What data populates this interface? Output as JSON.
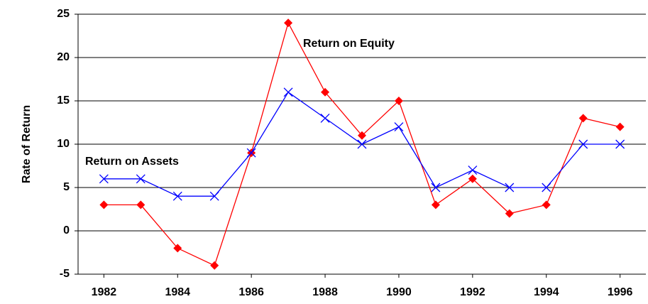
{
  "chart_data": {
    "type": "line",
    "y_label": "Rate of Return",
    "x": [
      1982,
      1983,
      1984,
      1985,
      1986,
      1987,
      1988,
      1989,
      1990,
      1991,
      1992,
      1993,
      1994,
      1995,
      1996
    ],
    "series": [
      {
        "name": "Return on Equity",
        "color": "#ff0000",
        "marker": "diamond",
        "values": [
          3,
          3,
          -2,
          -4,
          9,
          24,
          16,
          11,
          15,
          3,
          6,
          2,
          3,
          13,
          12
        ]
      },
      {
        "name": "Return on Assets",
        "color": "#0000ff",
        "marker": "x",
        "values": [
          6,
          6,
          4,
          4,
          9,
          16,
          13,
          10,
          12,
          5,
          7,
          5,
          5,
          10,
          10
        ]
      }
    ],
    "xlim": [
      1981.3,
      1996.7
    ],
    "xticks": [
      1982,
      1984,
      1986,
      1988,
      1990,
      1992,
      1994,
      1996
    ],
    "ylim": [
      -5,
      25
    ],
    "yticks": [
      -5,
      0,
      5,
      10,
      15,
      20,
      25
    ],
    "grid": true
  }
}
